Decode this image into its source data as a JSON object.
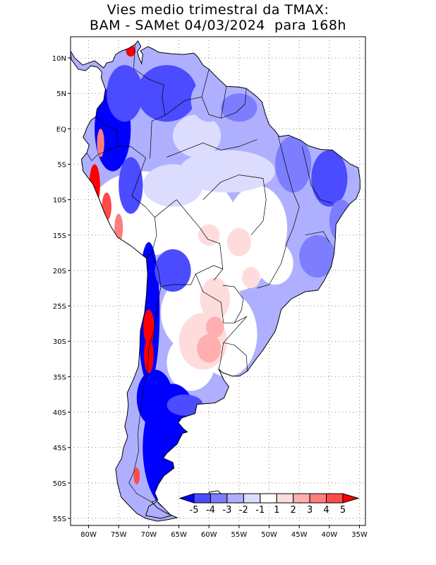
{
  "title": {
    "line1": "Vies medio trimestral da TMAX:",
    "line2": "BAM - SAMet 04/03/2024  para 168h"
  },
  "map": {
    "region": "South America",
    "lon_range": [
      -83,
      -34
    ],
    "lat_range": [
      -56,
      13
    ],
    "lon_ticks": [
      "80W",
      "75W",
      "70W",
      "65W",
      "60W",
      "55W",
      "50W",
      "45W",
      "40W",
      "35W"
    ],
    "lat_ticks": [
      "10N",
      "5N",
      "EQ",
      "5S",
      "10S",
      "15S",
      "20S",
      "25S",
      "30S",
      "35S",
      "40S",
      "45S",
      "50S",
      "55S"
    ],
    "gridlines": "dotted"
  },
  "colorbar": {
    "labels": [
      "-5",
      "-4",
      "-3",
      "-2",
      "-1",
      "1",
      "2",
      "3",
      "4",
      "5"
    ],
    "colors": [
      "#0000ff",
      "#4b4bff",
      "#7d7dff",
      "#afafff",
      "#dcdcff",
      "#ffffff",
      "#ffdcdc",
      "#ffafaf",
      "#ff7d7d",
      "#ff4b4b",
      "#ff0000"
    ]
  },
  "colors": {
    "land_mask": "#ffffff",
    "ocean": "#ffffff",
    "border": "#000000",
    "frame": "#000000"
  }
}
